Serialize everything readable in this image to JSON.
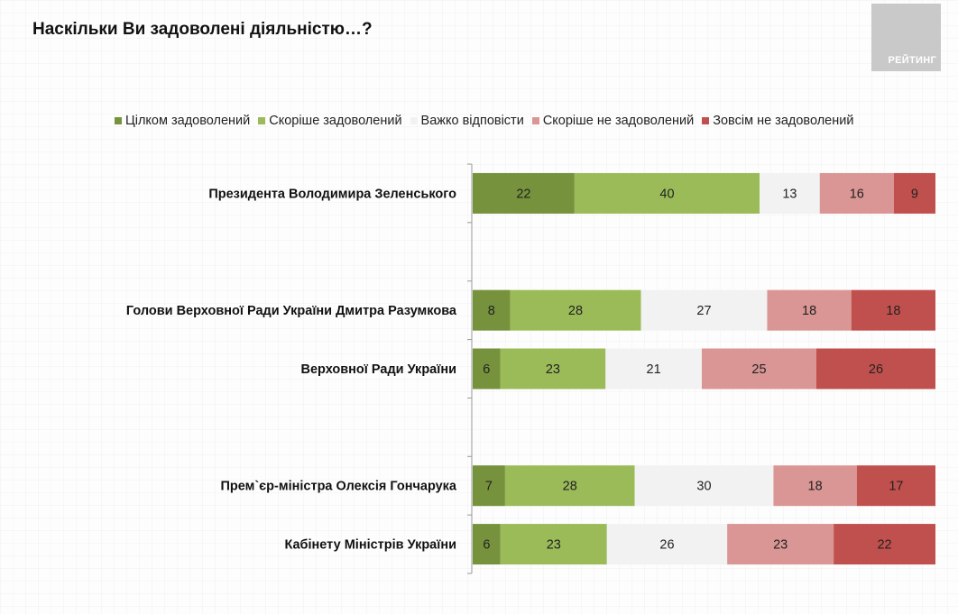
{
  "logo": {
    "text": "РЕЙТИНГ"
  },
  "chart_data": {
    "type": "bar",
    "orientation": "horizontal",
    "stacked": true,
    "normalized": true,
    "title": "Наскільки Ви задоволені діяльністю…?",
    "xlabel": "",
    "ylabel": "",
    "legend_position": "top",
    "grid": false,
    "categories": [
      "Президента Володимира Зеленського",
      "",
      "Голови Верховної Ради України Дмитра Разумкова",
      "Верховної Ради України",
      "",
      "Прем`єр-міністра Олексія Гончарука",
      "Кабінету Міністрів України"
    ],
    "series": [
      {
        "name": "Цілком задоволений",
        "color": "#76923c",
        "values": [
          22,
          null,
          8,
          6,
          null,
          7,
          6
        ]
      },
      {
        "name": "Скоріше задоволений",
        "color": "#9bbb59",
        "values": [
          40,
          null,
          28,
          23,
          null,
          28,
          23
        ]
      },
      {
        "name": "Важко відповісти",
        "color": "#f2f2f2",
        "values": [
          13,
          null,
          27,
          21,
          null,
          30,
          26
        ]
      },
      {
        "name": "Скоріше не задоволений",
        "color": "#da9694",
        "values": [
          16,
          null,
          18,
          25,
          null,
          18,
          23
        ]
      },
      {
        "name": "Зовсім не задоволений",
        "color": "#c0504d",
        "values": [
          9,
          null,
          18,
          26,
          null,
          17,
          22
        ]
      }
    ]
  }
}
